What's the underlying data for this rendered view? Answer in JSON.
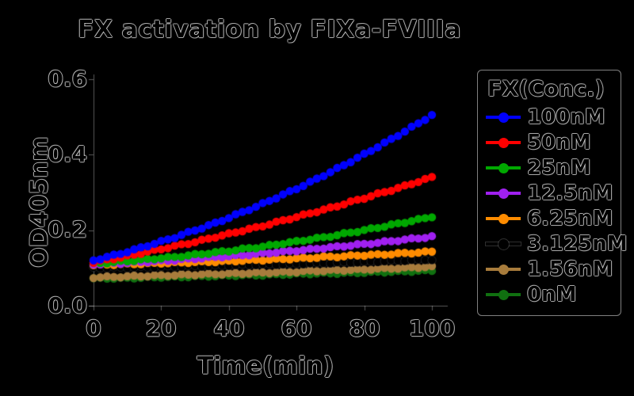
{
  "figure": {
    "title": "FX activation by FIXa-FVIIIa"
  },
  "legend": {
    "title": "FX(Conc.)",
    "entries": [
      {
        "label": "100nM",
        "color": "#0000FF"
      },
      {
        "label": "50nM",
        "color": "#FF0000"
      },
      {
        "label": "25nM",
        "color": "#00A800"
      },
      {
        "label": "12.5nM",
        "color": "#A020F0"
      },
      {
        "label": "6.25nM",
        "color": "#FF8C00"
      },
      {
        "label": "3.125nM",
        "color": "#000000"
      },
      {
        "label": "1.56nM",
        "color": "#A87C3C"
      },
      {
        "label": "0nM",
        "color": "#107010"
      }
    ]
  },
  "chart_data": {
    "type": "scatter",
    "title": "FX activation by FIXa-FVIIIa",
    "xlabel": "Time(min)",
    "ylabel": "OD405nm",
    "xlim": [
      0,
      100
    ],
    "ylim": [
      0.0,
      0.6
    ],
    "grid": false,
    "legend_position": "right",
    "background": "#000000",
    "marker": "circle",
    "x_ticks": [
      0,
      20,
      40,
      60,
      80,
      100
    ],
    "x_tick_labels": [
      "0",
      "20",
      "40",
      "60",
      "80",
      "100"
    ],
    "y_ticks": [
      0.0,
      0.2,
      0.4,
      0.6
    ],
    "y_tick_labels": [
      "0.0",
      "0.2",
      "0.4",
      "0.6"
    ],
    "x": [
      0,
      4,
      8,
      12,
      16,
      20,
      24,
      28,
      32,
      36,
      40,
      44,
      48,
      52,
      56,
      60,
      64,
      68,
      72,
      76,
      80,
      84,
      88,
      92,
      96,
      100
    ],
    "series": [
      {
        "name": "100nM",
        "color": "#0000FF",
        "values": [
          0.12,
          0.129,
          0.138,
          0.148,
          0.159,
          0.17,
          0.181,
          0.194,
          0.206,
          0.219,
          0.233,
          0.248,
          0.262,
          0.278,
          0.294,
          0.31,
          0.327,
          0.345,
          0.363,
          0.382,
          0.401,
          0.421,
          0.441,
          0.462,
          0.483,
          0.505
        ]
      },
      {
        "name": "50nM",
        "color": "#FF0000",
        "values": [
          0.115,
          0.122,
          0.128,
          0.135,
          0.143,
          0.15,
          0.158,
          0.165,
          0.173,
          0.182,
          0.19,
          0.199,
          0.207,
          0.216,
          0.226,
          0.235,
          0.245,
          0.254,
          0.264,
          0.275,
          0.285,
          0.296,
          0.306,
          0.317,
          0.329,
          0.34
        ]
      },
      {
        "name": "25nM",
        "color": "#00A800",
        "values": [
          0.112,
          0.114,
          0.117,
          0.12,
          0.123,
          0.126,
          0.129,
          0.133,
          0.137,
          0.141,
          0.145,
          0.15,
          0.154,
          0.159,
          0.165,
          0.17,
          0.176,
          0.181,
          0.187,
          0.194,
          0.2,
          0.207,
          0.214,
          0.221,
          0.228,
          0.236
        ]
      },
      {
        "name": "12.5nM",
        "color": "#A020F0",
        "values": [
          0.11,
          0.112,
          0.113,
          0.115,
          0.117,
          0.119,
          0.121,
          0.124,
          0.126,
          0.129,
          0.131,
          0.134,
          0.137,
          0.14,
          0.143,
          0.146,
          0.149,
          0.153,
          0.156,
          0.16,
          0.163,
          0.167,
          0.171,
          0.175,
          0.179,
          0.183
        ]
      },
      {
        "name": "6.25nM",
        "color": "#FF8C00",
        "values": [
          0.108,
          0.109,
          0.11,
          0.111,
          0.112,
          0.113,
          0.114,
          0.115,
          0.116,
          0.117,
          0.118,
          0.12,
          0.121,
          0.122,
          0.124,
          0.125,
          0.127,
          0.129,
          0.13,
          0.132,
          0.134,
          0.135,
          0.137,
          0.139,
          0.141,
          0.143
        ]
      },
      {
        "name": "3.125nM",
        "color": "#000000",
        "values": [
          0.1,
          0.101,
          0.101,
          0.102,
          0.102,
          0.103,
          0.104,
          0.105,
          0.105,
          0.106,
          0.107,
          0.108,
          0.109,
          0.109,
          0.11,
          0.111,
          0.112,
          0.113,
          0.114,
          0.115,
          0.116,
          0.117,
          0.119,
          0.12,
          0.121,
          0.122
        ]
      },
      {
        "name": "1.56nM",
        "color": "#A87C3C",
        "values": [
          0.075,
          0.076,
          0.077,
          0.078,
          0.079,
          0.08,
          0.081,
          0.082,
          0.083,
          0.084,
          0.085,
          0.086,
          0.087,
          0.088,
          0.089,
          0.09,
          0.092,
          0.093,
          0.094,
          0.095,
          0.096,
          0.098,
          0.099,
          0.1,
          0.102,
          0.103
        ]
      },
      {
        "name": "0nM",
        "color": "#107010",
        "values": [
          0.072,
          0.073,
          0.073,
          0.074,
          0.075,
          0.076,
          0.076,
          0.077,
          0.078,
          0.079,
          0.08,
          0.081,
          0.081,
          0.082,
          0.083,
          0.084,
          0.085,
          0.086,
          0.086,
          0.087,
          0.088,
          0.089,
          0.09,
          0.091,
          0.092,
          0.093
        ]
      }
    ]
  }
}
